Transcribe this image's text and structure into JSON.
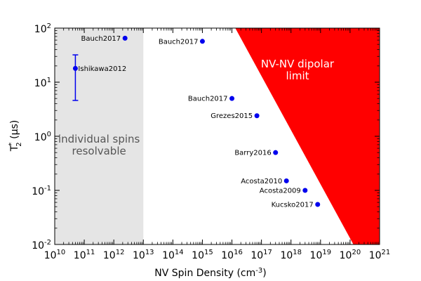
{
  "chart_data": {
    "type": "scatter",
    "x_scale": "log",
    "y_scale": "log",
    "xlim": [
      10000000000.0,
      1e+21
    ],
    "ylim": [
      0.01,
      100
    ],
    "xlabel": "NV Spin Density",
    "xlabel_unit": "(cm",
    "xlabel_unit_exp": "-3",
    "xlabel_unit_close": ")",
    "ylabel_main": "T",
    "ylabel_sub": "2",
    "ylabel_sup": "*",
    "ylabel_unit": " (µs)",
    "x_ticks": [
      {
        "base": "10",
        "exp": "10",
        "value": 10000000000.0
      },
      {
        "base": "10",
        "exp": "11",
        "value": 100000000000.0
      },
      {
        "base": "10",
        "exp": "12",
        "value": 1000000000000.0
      },
      {
        "base": "10",
        "exp": "13",
        "value": 10000000000000.0
      },
      {
        "base": "10",
        "exp": "14",
        "value": 100000000000000.0
      },
      {
        "base": "10",
        "exp": "15",
        "value": 1000000000000000.0
      },
      {
        "base": "10",
        "exp": "16",
        "value": 1e+16
      },
      {
        "base": "10",
        "exp": "17",
        "value": 1e+17
      },
      {
        "base": "10",
        "exp": "18",
        "value": 1e+18
      },
      {
        "base": "10",
        "exp": "19",
        "value": 1e+19
      },
      {
        "base": "10",
        "exp": "20",
        "value": 1e+20
      },
      {
        "base": "10",
        "exp": "21",
        "value": 1e+21
      }
    ],
    "y_ticks": [
      {
        "base": "10",
        "exp": "-2",
        "value": 0.01
      },
      {
        "base": "10",
        "exp": "-1",
        "value": 0.1
      },
      {
        "base": "10",
        "exp": "0",
        "value": 1
      },
      {
        "base": "10",
        "exp": "1",
        "value": 10
      },
      {
        "base": "10",
        "exp": "2",
        "value": 100
      }
    ],
    "points": [
      {
        "label": "Bauch2017",
        "x": 2400000000000.0,
        "y": 65,
        "label_side": "left"
      },
      {
        "label": "Ishikawa2012",
        "x": 50000000000.0,
        "y": 18,
        "yerr_low": 4.6,
        "yerr_high": 32,
        "label_side": "right"
      },
      {
        "label": "Bauch2017",
        "x": 1000000000000000.0,
        "y": 57,
        "label_side": "left"
      },
      {
        "label": "Bauch2017",
        "x": 1e+16,
        "y": 5,
        "label_side": "left"
      },
      {
        "label": "Grezes2015",
        "x": 7e+16,
        "y": 2.4,
        "label_side": "left"
      },
      {
        "label": "Barry2016",
        "x": 3e+17,
        "y": 0.5,
        "label_side": "left"
      },
      {
        "label": "Acosta2010",
        "x": 7e+17,
        "y": 0.15,
        "label_side": "left"
      },
      {
        "label": "Acosta2009",
        "x": 3e+18,
        "y": 0.1,
        "label_side": "left"
      },
      {
        "label": "Kucsko2017",
        "x": 8e+18,
        "y": 0.055,
        "label_side": "left"
      }
    ],
    "regions": [
      {
        "name": "individual-spins",
        "text_lines": [
          "individual spins",
          "resolvable"
        ],
        "color": "#e5e5e5",
        "text_color": "#555555",
        "x_range": [
          10000000000.0,
          10000000000000.0
        ]
      },
      {
        "name": "dipolar-limit",
        "text_lines": [
          "NV-NV dipolar",
          "limit"
        ],
        "color": "#ff0000",
        "text_color": "#ffffff",
        "polygon": [
          [
            1.3e+16,
            100
          ],
          [
            1e+21,
            100
          ],
          [
            1e+21,
            0.01
          ],
          [
            1.3e+20,
            0.01
          ]
        ]
      }
    ],
    "point_color": "#0000ee",
    "grid": false,
    "legend": "none"
  }
}
